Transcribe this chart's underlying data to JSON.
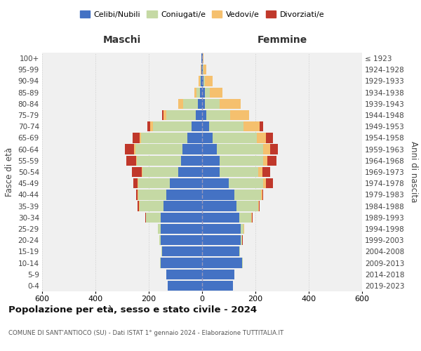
{
  "age_groups": [
    "0-4",
    "5-9",
    "10-14",
    "15-19",
    "20-24",
    "25-29",
    "30-34",
    "35-39",
    "40-44",
    "45-49",
    "50-54",
    "55-59",
    "60-64",
    "65-69",
    "70-74",
    "75-79",
    "80-84",
    "85-89",
    "90-94",
    "95-99",
    "100+"
  ],
  "birth_years": [
    "2019-2023",
    "2014-2018",
    "2009-2013",
    "2004-2008",
    "1999-2003",
    "1994-1998",
    "1989-1993",
    "1984-1988",
    "1979-1983",
    "1974-1978",
    "1969-1973",
    "1964-1968",
    "1959-1963",
    "1954-1958",
    "1949-1953",
    "1944-1948",
    "1939-1943",
    "1934-1938",
    "1929-1933",
    "1924-1928",
    "≤ 1923"
  ],
  "colors": {
    "celibi": "#4472c4",
    "coniugati": "#c5d9a4",
    "vedovi": "#f5c06e",
    "divorziati": "#c0382b",
    "background": "#f0f0f0",
    "grid": "#cccccc",
    "dashed_line": "#9999bb"
  },
  "maschi": {
    "celibi": [
      130,
      135,
      155,
      150,
      155,
      155,
      155,
      145,
      135,
      120,
      90,
      80,
      75,
      55,
      40,
      25,
      15,
      8,
      5,
      3,
      2
    ],
    "coniugati": [
      0,
      0,
      2,
      3,
      5,
      10,
      55,
      90,
      105,
      120,
      135,
      165,
      175,
      175,
      145,
      110,
      55,
      12,
      3,
      0,
      0
    ],
    "vedovi": [
      0,
      0,
      0,
      0,
      0,
      1,
      1,
      1,
      2,
      2,
      2,
      3,
      5,
      5,
      10,
      10,
      20,
      10,
      5,
      2,
      0
    ],
    "divorziati": [
      0,
      0,
      0,
      0,
      0,
      1,
      2,
      5,
      5,
      15,
      35,
      35,
      35,
      25,
      10,
      5,
      0,
      0,
      0,
      0,
      0
    ]
  },
  "femmine": {
    "celibi": [
      115,
      120,
      150,
      140,
      145,
      145,
      140,
      130,
      120,
      100,
      65,
      65,
      55,
      40,
      25,
      15,
      10,
      10,
      5,
      3,
      2
    ],
    "coniugati": [
      0,
      0,
      2,
      3,
      5,
      10,
      45,
      80,
      100,
      130,
      145,
      165,
      175,
      165,
      130,
      90,
      55,
      20,
      5,
      2,
      0
    ],
    "vedovi": [
      0,
      0,
      0,
      0,
      1,
      2,
      2,
      2,
      5,
      10,
      15,
      15,
      25,
      35,
      60,
      70,
      80,
      45,
      30,
      10,
      2
    ],
    "divorziati": [
      0,
      0,
      0,
      0,
      1,
      1,
      2,
      3,
      5,
      25,
      30,
      35,
      30,
      25,
      15,
      0,
      0,
      0,
      0,
      0,
      0
    ]
  },
  "title": "Popolazione per età, sesso e stato civile - 2024",
  "subtitle": "COMUNE DI SANT'ANTIOCO (SU) - Dati ISTAT 1° gennaio 2024 - Elaborazione TUTTITALIA.IT",
  "xlabel_left": "Maschi",
  "xlabel_right": "Femmine",
  "ylabel_left": "Fasce di età",
  "ylabel_right": "Anni di nascita",
  "legend_labels": [
    "Celibi/Nubili",
    "Coniugati/e",
    "Vedovi/e",
    "Divorziati/e"
  ],
  "xlim": 600
}
